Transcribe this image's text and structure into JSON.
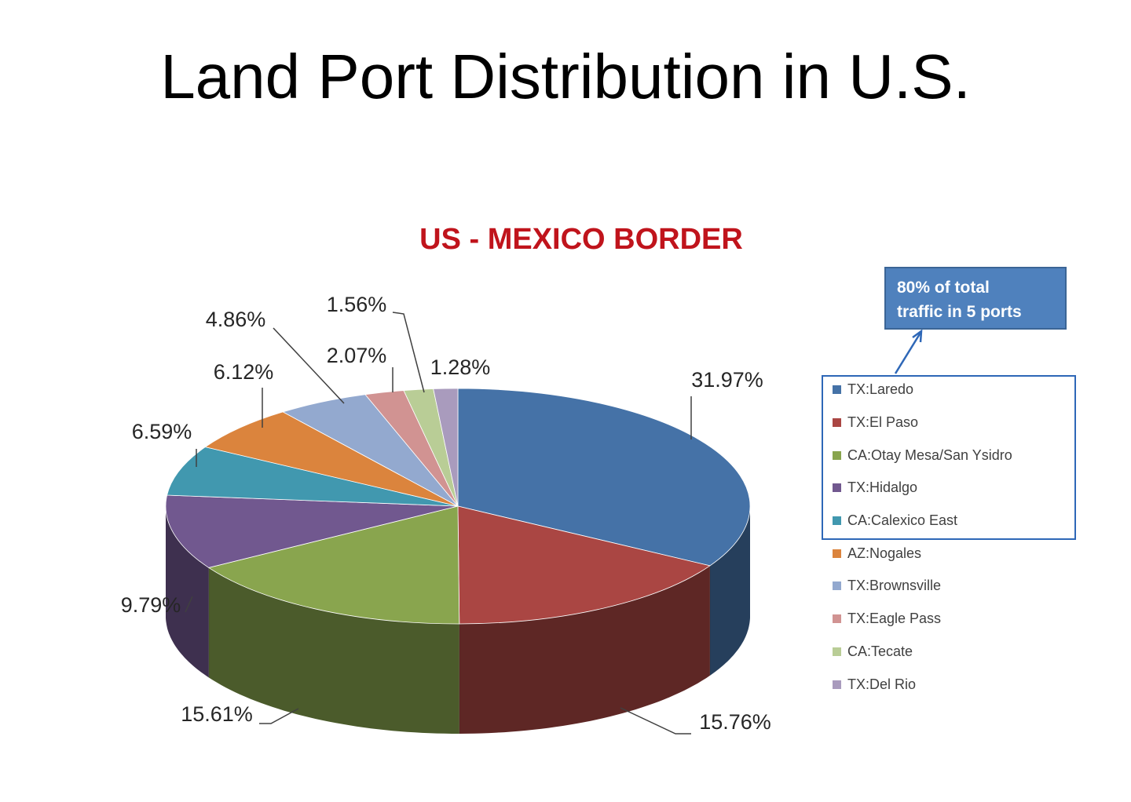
{
  "slide_title": "Land Port Distribution in U.S.",
  "callout": {
    "line1": "80% of total",
    "line2": "traffic in 5 ports"
  },
  "chart_data": {
    "type": "pie",
    "title": "US - MEXICO BORDER",
    "legend_position": "right",
    "slices": [
      {
        "name": "TX:Laredo",
        "value": 31.97,
        "label": "31.97%",
        "color": "#4572a7"
      },
      {
        "name": "TX:El Paso",
        "value": 15.76,
        "label": "15.76%",
        "color": "#aa4643"
      },
      {
        "name": "CA:Otay Mesa/San Ysidro",
        "value": 15.61,
        "label": "15.61%",
        "color": "#89a54e"
      },
      {
        "name": "TX:Hidalgo",
        "value": 9.79,
        "label": "9.79%",
        "color": "#71588f"
      },
      {
        "name": "CA:Calexico East",
        "value": 6.59,
        "label": "6.59%",
        "color": "#4198af"
      },
      {
        "name": "AZ:Nogales",
        "value": 6.12,
        "label": "6.12%",
        "color": "#db843d"
      },
      {
        "name": "TX:Brownsville",
        "value": 4.86,
        "label": "4.86%",
        "color": "#93a9cf"
      },
      {
        "name": "TX:Eagle Pass",
        "value": 2.07,
        "label": "2.07%",
        "color": "#d19392"
      },
      {
        "name": "CA:Tecate",
        "value": 1.56,
        "label": "1.56%",
        "color": "#b9cd96"
      },
      {
        "name": "TX:Del Rio",
        "value": 1.28,
        "label": "1.28%",
        "color": "#a99bbd"
      }
    ]
  }
}
